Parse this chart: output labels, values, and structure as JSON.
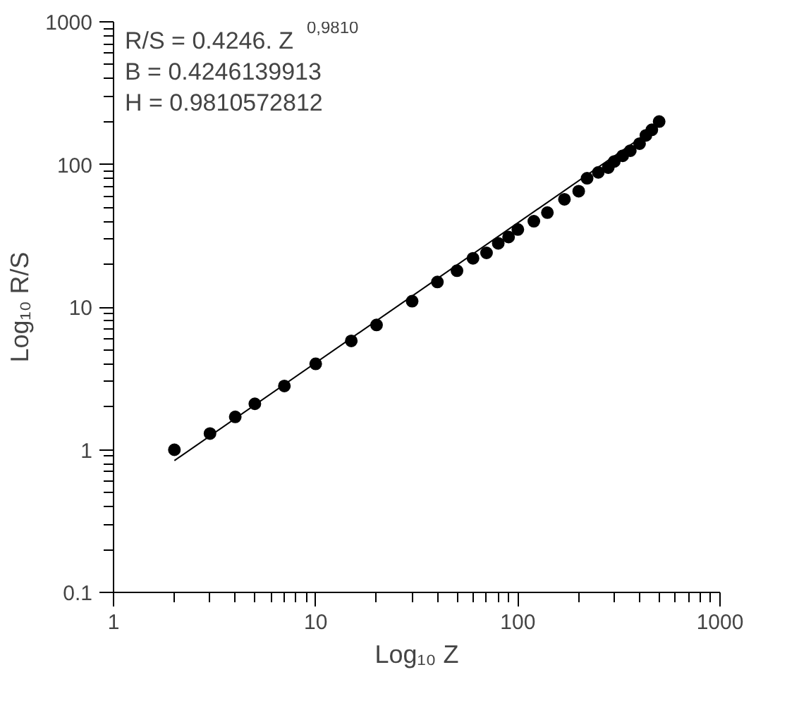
{
  "chart_data": {
    "type": "scatter",
    "xlabel": "Log₁₀ Z",
    "ylabel": "Log₁₀ R/S",
    "log": "xy",
    "grid": false,
    "annotations": [
      "R/S = 0.4246. Z$^{0,9810}$",
      "B = 0.4246139913",
      "H = 0.9810572812"
    ],
    "xlim": [
      1,
      1000
    ],
    "ylim": [
      0.1,
      1000
    ],
    "xticks": [
      1,
      10,
      100,
      1000
    ],
    "yticks": [
      0.1,
      1,
      10,
      100,
      1000
    ],
    "series": [
      {
        "marker": "circle",
        "color": "#000000",
        "x": [
          2,
          3,
          4,
          5,
          7,
          10,
          15,
          20,
          30,
          40,
          50,
          60,
          70,
          80,
          90,
          100,
          120,
          140,
          170,
          200,
          220,
          250,
          280,
          300,
          330,
          360,
          400,
          430,
          460,
          500
        ],
        "values": [
          1.0,
          1.3,
          1.7,
          2.1,
          2.8,
          4.0,
          5.8,
          7.5,
          11,
          15,
          18,
          22,
          24,
          28,
          31,
          35,
          40,
          46,
          57,
          65,
          80,
          88,
          95,
          105,
          115,
          125,
          140,
          160,
          175,
          200
        ]
      },
      {
        "type": "line",
        "color": "#000000",
        "x": [
          2,
          500
        ],
        "values": [
          0.84,
          189
        ]
      }
    ]
  }
}
